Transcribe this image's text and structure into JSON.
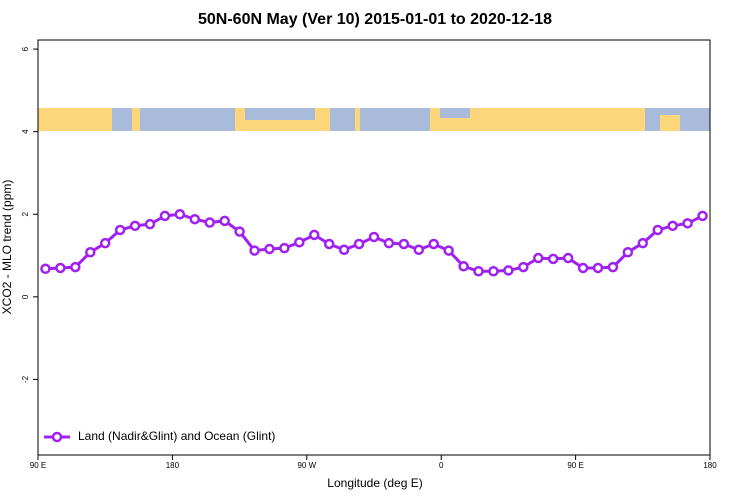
{
  "chart_data": {
    "type": "line",
    "title": "50N-60N May (Ver 10)   2015-01-01 to 2020-12-18",
    "x_label": "Longitude (deg E)",
    "y_label": "XCO2 - MLO trend (ppm)",
    "x": [
      95,
      105,
      115,
      125,
      135,
      145,
      155,
      165,
      175,
      185,
      195,
      205,
      215,
      225,
      235,
      245,
      255,
      265,
      275,
      285,
      295,
      305,
      315,
      325,
      335,
      345,
      355,
      365,
      375,
      385,
      395,
      405,
      415,
      425,
      435,
      445,
      455,
      465,
      475,
      485,
      495,
      505,
      515,
      525,
      535
    ],
    "series": [
      {
        "name": "Land (Nadir&Glint) and Ocean (Glint)",
        "color": "#a020f0",
        "values": [
          0.68,
          0.7,
          0.72,
          1.08,
          1.3,
          1.62,
          1.72,
          1.76,
          1.96,
          2.0,
          1.88,
          1.8,
          1.84,
          1.58,
          1.12,
          1.16,
          1.18,
          1.32,
          1.5,
          1.28,
          1.14,
          1.28,
          1.45,
          1.3,
          1.28,
          1.14,
          1.28,
          1.12,
          0.74,
          0.62,
          0.62,
          0.64,
          0.72,
          0.94,
          0.92,
          0.94,
          0.7,
          0.7,
          0.72,
          1.08,
          1.3,
          1.62,
          1.72,
          1.78,
          1.96
        ]
      }
    ],
    "xlim": [
      90,
      540
    ],
    "xticks": [
      {
        "value": 90,
        "label": "90 E"
      },
      180,
      {
        "value": 270,
        "label": "90 W"
      },
      {
        "value": 360,
        "label": "0"
      },
      {
        "value": 450,
        "label": "90 E"
      },
      {
        "value": 540,
        "label": "180"
      }
    ],
    "ylim": [
      -3.83,
      6.22
    ],
    "yticks": [
      -2,
      0,
      2,
      4,
      6
    ],
    "legend_position": "bottom-left"
  }
}
